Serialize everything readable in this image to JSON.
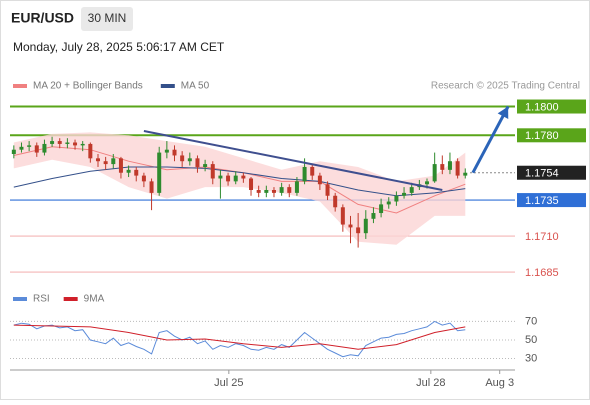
{
  "header": {
    "symbol": "EUR/USD",
    "timeframe": "30 MIN",
    "timestamp": "Monday, July 28, 2025 5:06:17 AM CET"
  },
  "chart_data": [
    {
      "type": "candlestick",
      "credit": "Research © 2025 Trading Central",
      "xlim": [
        -0.5,
        65.5
      ],
      "ylim": [
        1.1676,
        1.1808
      ],
      "up_color": "#2e8b2e",
      "down_color": "#c0392b",
      "open": [
        1.1767,
        1.177,
        1.1772,
        1.1773,
        1.1768,
        1.1774,
        1.1776,
        1.1774,
        1.1775,
        1.1773,
        1.1774,
        1.1764,
        1.1762,
        1.176,
        1.1764,
        1.1754,
        1.1756,
        1.1752,
        1.1748,
        1.174,
        1.1768,
        1.177,
        1.1766,
        1.1762,
        1.1764,
        1.1758,
        1.176,
        1.175,
        1.1752,
        1.1748,
        1.1752,
        1.175,
        1.1742,
        1.174,
        1.1742,
        1.174,
        1.1744,
        1.174,
        1.1748,
        1.1758,
        1.1752,
        1.1746,
        1.1738,
        1.173,
        1.1718,
        1.1716,
        1.1712,
        1.1722,
        1.1726,
        1.1732,
        1.1734,
        1.1738,
        1.174,
        1.1744,
        1.1746,
        1.1748,
        1.176,
        1.1756,
        1.1762,
        1.1752
      ],
      "high": [
        1.1773,
        1.1775,
        1.1776,
        1.1775,
        1.1777,
        1.1779,
        1.1778,
        1.1778,
        1.1777,
        1.1776,
        1.1775,
        1.1767,
        1.1765,
        1.1767,
        1.1765,
        1.1759,
        1.1758,
        1.1754,
        1.175,
        1.1772,
        1.1776,
        1.1773,
        1.1769,
        1.1768,
        1.1766,
        1.1763,
        1.1762,
        1.1756,
        1.1754,
        1.1755,
        1.1754,
        1.1751,
        1.1745,
        1.1745,
        1.1744,
        1.1747,
        1.1746,
        1.1751,
        1.1764,
        1.176,
        1.1754,
        1.1748,
        1.174,
        1.1732,
        1.1724,
        1.1726,
        1.1728,
        1.173,
        1.1736,
        1.1737,
        1.1741,
        1.1744,
        1.1747,
        1.1749,
        1.175,
        1.1768,
        1.1766,
        1.1768,
        1.1764,
        1.1757
      ],
      "low": [
        1.1764,
        1.1768,
        1.1769,
        1.1765,
        1.1766,
        1.1772,
        1.1771,
        1.1771,
        1.177,
        1.1769,
        1.1761,
        1.1758,
        1.1756,
        1.1757,
        1.175,
        1.1751,
        1.1748,
        1.1744,
        1.1728,
        1.1738,
        1.1764,
        1.1762,
        1.1758,
        1.1759,
        1.1754,
        1.1755,
        1.1746,
        1.1736,
        1.1745,
        1.1746,
        1.1747,
        1.1738,
        1.1737,
        1.1737,
        1.1737,
        1.1738,
        1.1737,
        1.1738,
        1.1746,
        1.1749,
        1.1742,
        1.1735,
        1.1727,
        1.1713,
        1.1705,
        1.1702,
        1.1708,
        1.1719,
        1.1723,
        1.1729,
        1.1731,
        1.1736,
        1.1738,
        1.1742,
        1.1743,
        1.1747,
        1.1753,
        1.1753,
        1.175,
        1.175
      ],
      "close": [
        1.177,
        1.1772,
        1.1773,
        1.1768,
        1.1774,
        1.1776,
        1.1774,
        1.1775,
        1.1773,
        1.1774,
        1.1764,
        1.1762,
        1.176,
        1.1764,
        1.1754,
        1.1756,
        1.1752,
        1.1748,
        1.174,
        1.1768,
        1.177,
        1.1766,
        1.1762,
        1.1764,
        1.1758,
        1.176,
        1.175,
        1.1752,
        1.1748,
        1.1752,
        1.175,
        1.1742,
        1.174,
        1.1742,
        1.174,
        1.1744,
        1.174,
        1.1748,
        1.1758,
        1.1752,
        1.1746,
        1.1738,
        1.173,
        1.1718,
        1.1716,
        1.1712,
        1.1722,
        1.1726,
        1.1732,
        1.1734,
        1.1738,
        1.174,
        1.1744,
        1.1746,
        1.1748,
        1.176,
        1.1756,
        1.1762,
        1.1752,
        1.1754
      ],
      "series": [
        {
          "name": "MA 20 + Bollinger Bands",
          "color": "#f08080",
          "band_color": "#fbd5d5",
          "x": [
            0,
            5,
            10,
            15,
            20,
            25,
            30,
            35,
            40,
            45,
            50,
            55,
            59
          ],
          "values": [
            1.1766,
            1.1772,
            1.177,
            1.1762,
            1.1756,
            1.1758,
            1.1754,
            1.1748,
            1.1748,
            1.1732,
            1.1726,
            1.1738,
            1.1746
          ],
          "band_upper": [
            1.1775,
            1.1781,
            1.1782,
            1.178,
            1.1776,
            1.1772,
            1.1764,
            1.1756,
            1.1762,
            1.1758,
            1.1748,
            1.1752,
            1.1768
          ],
          "band_lower": [
            1.1757,
            1.1763,
            1.1758,
            1.1744,
            1.1736,
            1.1744,
            1.1744,
            1.174,
            1.1734,
            1.1706,
            1.1704,
            1.1724,
            1.1724
          ]
        },
        {
          "name": "MA 50",
          "color": "#34508a",
          "x": [
            0,
            5,
            10,
            15,
            20,
            25,
            30,
            35,
            40,
            45,
            50,
            55,
            59
          ],
          "values": [
            1.1744,
            1.175,
            1.1755,
            1.1758,
            1.1758,
            1.1757,
            1.1754,
            1.175,
            1.1748,
            1.1742,
            1.1738,
            1.174,
            1.1743
          ]
        }
      ],
      "trendline": {
        "color": "#3f4f8f",
        "x": [
          17,
          56
        ],
        "values": [
          1.1783,
          1.1742
        ]
      },
      "arrow": {
        "color": "#2b64b8",
        "x": [
          60,
          64.6
        ],
        "values": [
          1.1754,
          1.18
        ]
      },
      "levels": [
        {
          "value": 1.18,
          "label": "1.1800",
          "color": "#5aa51a",
          "line_style": "solid",
          "label_style": "box"
        },
        {
          "value": 1.178,
          "label": "1.1780",
          "color": "#5aa51a",
          "line_style": "solid",
          "label_style": "box"
        },
        {
          "value": 1.1754,
          "label": "1.1754",
          "color": "#222222",
          "line_style": "dotted",
          "label_style": "box"
        },
        {
          "value": 1.1735,
          "label": "1.1735",
          "color": "#2f6fd6",
          "line_style": "solid",
          "label_style": "box"
        },
        {
          "value": 1.171,
          "label": "1.1710",
          "color": "#d9534f",
          "line_style": "thin",
          "label_style": "text"
        },
        {
          "value": 1.1685,
          "label": "1.1685",
          "color": "#d9534f",
          "line_style": "thin",
          "label_style": "text"
        }
      ]
    },
    {
      "type": "line",
      "xlim": [
        -0.5,
        65.5
      ],
      "ylim": [
        22,
        79
      ],
      "yticks": [
        30,
        50,
        70
      ],
      "grid": true,
      "xticks": [
        {
          "value": 28.1,
          "label": "Jul 25"
        },
        {
          "value": 54.5,
          "label": "Jul 28"
        },
        {
          "value": 63.5,
          "label": "Aug 3"
        }
      ],
      "series": [
        {
          "name": "RSI",
          "color": "#5b8bd9",
          "x": [
            0,
            1,
            2,
            3,
            4,
            5,
            6,
            7,
            8,
            9,
            10,
            11,
            12,
            13,
            14,
            15,
            16,
            17,
            18,
            19,
            20,
            21,
            22,
            23,
            24,
            25,
            26,
            27,
            28,
            29,
            30,
            31,
            32,
            33,
            34,
            35,
            36,
            37,
            38,
            39,
            40,
            41,
            42,
            43,
            44,
            45,
            46,
            47,
            48,
            49,
            50,
            51,
            52,
            53,
            54,
            55,
            56,
            57,
            58,
            59
          ],
          "values": [
            66,
            68,
            67,
            62,
            65,
            66,
            63,
            64,
            60,
            61,
            50,
            48,
            46,
            52,
            44,
            47,
            43,
            40,
            35,
            58,
            60,
            54,
            50,
            53,
            46,
            49,
            40,
            44,
            42,
            46,
            44,
            40,
            39,
            42,
            40,
            45,
            42,
            50,
            58,
            52,
            46,
            40,
            36,
            32,
            34,
            33,
            44,
            48,
            52,
            53,
            56,
            57,
            60,
            62,
            64,
            70,
            66,
            68,
            60,
            61
          ]
        },
        {
          "name": "9MA",
          "color": "#d0202a",
          "x": [
            0,
            5,
            10,
            15,
            20,
            25,
            30,
            35,
            40,
            45,
            50,
            55,
            59
          ],
          "values": [
            66,
            65,
            64,
            58,
            50,
            51,
            46,
            42,
            46,
            40,
            45,
            58,
            64
          ]
        }
      ]
    }
  ]
}
